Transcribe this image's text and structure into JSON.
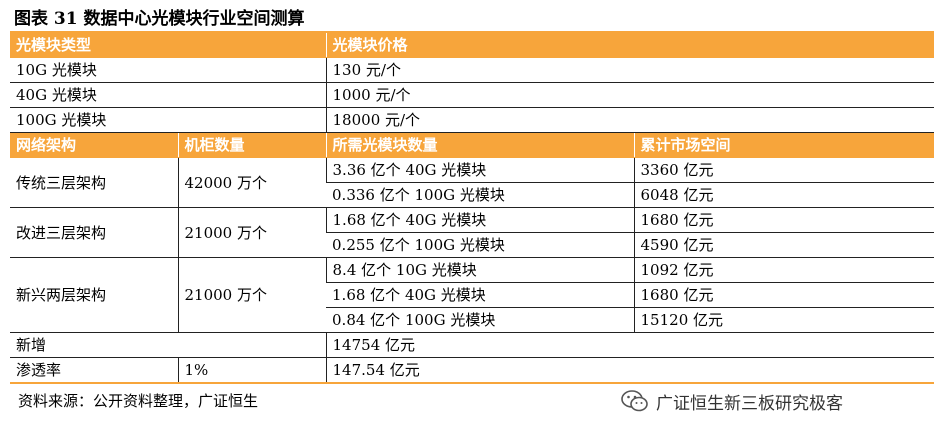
{
  "title": "图表 31  数据中心光模块行业空间测算",
  "price_section": {
    "headers": [
      "光模块类型",
      "光模块价格"
    ],
    "rows": [
      {
        "type": "10G 光模块",
        "price": "130 元/个"
      },
      {
        "type": "40G 光模块",
        "price": "1000 元/个"
      },
      {
        "type": "100G 光模块",
        "price": "18000 元/个"
      }
    ]
  },
  "market_section": {
    "headers": [
      "网络架构",
      "机柜数量",
      "所需光模块数量",
      "累计市场空间"
    ],
    "groups": [
      {
        "arch": "传统三层架构",
        "racks": "42000 万个",
        "items": [
          {
            "qty": "3.36 亿个 40G 光模块",
            "market": "3360 亿元"
          },
          {
            "qty": "0.336 亿个 100G 光模块",
            "market": "6048 亿元"
          }
        ]
      },
      {
        "arch": "改进三层架构",
        "racks": "21000 万个",
        "items": [
          {
            "qty": "1.68 亿个 40G 光模块",
            "market": "1680 亿元"
          },
          {
            "qty": "0.255 亿个 100G 光模块",
            "market": "4590 亿元"
          }
        ]
      },
      {
        "arch": "新兴两层架构",
        "racks": "21000 万个",
        "items": [
          {
            "qty": "8.4 亿个 10G 光模块",
            "market": "1092 亿元"
          },
          {
            "qty": "1.68 亿个 40G 光模块",
            "market": "1680 亿元"
          },
          {
            "qty": "0.84 亿个 100G 光模块",
            "market": "15120 亿元"
          }
        ]
      }
    ],
    "new_increase": {
      "label": "新增",
      "value": "14754 亿元"
    },
    "penetration": {
      "label": "渗透率",
      "rate": "1%",
      "value": "147.54 亿元"
    }
  },
  "source": "资料来源：公开资料整理，广证恒生",
  "watermark": {
    "text": "广证恒生新三板研究极客",
    "icon": "wechat-icon"
  },
  "colors": {
    "accent": "#f7a53b"
  }
}
